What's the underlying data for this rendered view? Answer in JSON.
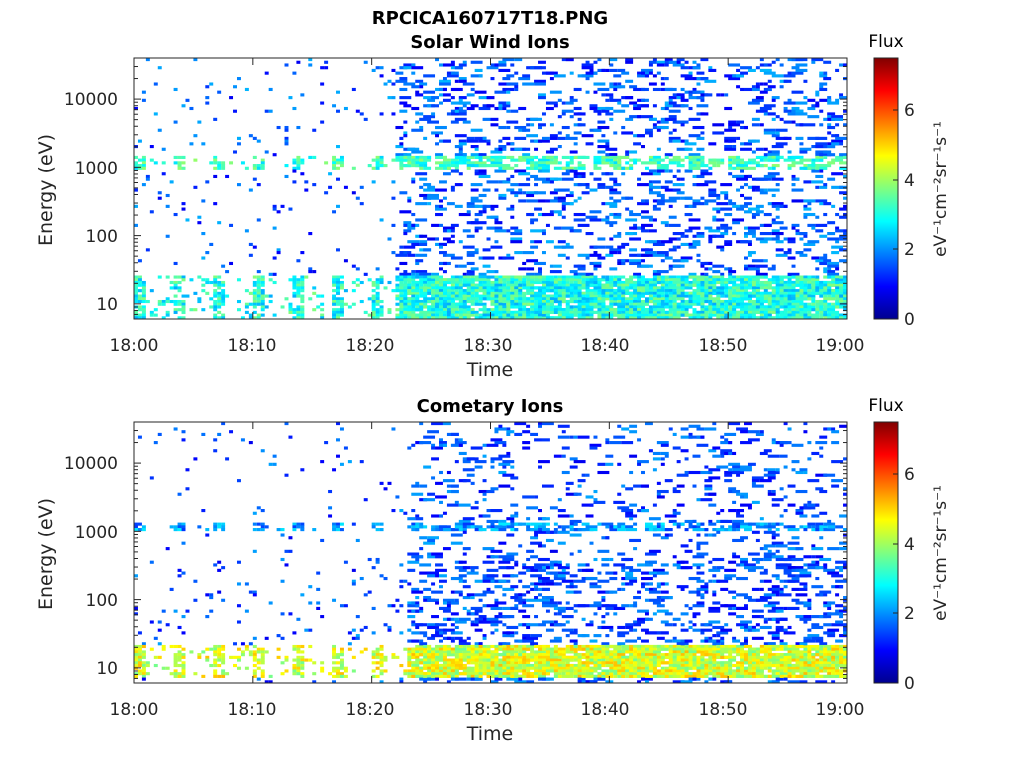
{
  "figure": {
    "title": "RPCICA160717T18.PNG"
  },
  "chart_data": [
    {
      "type": "heatmap",
      "title": "Solar Wind Ions",
      "xlabel": "Time",
      "ylabel": "Energy (eV)",
      "x_tick_labels": [
        "18:00",
        "18:10",
        "18:20",
        "18:30",
        "18:40",
        "18:50",
        "19:00"
      ],
      "x_range": [
        "18:00",
        "19:00"
      ],
      "y_tick_values": [
        10,
        100,
        1000,
        10000
      ],
      "y_tick_labels": [
        "10",
        "100",
        "1000",
        "10000"
      ],
      "y_range": [
        6,
        40000
      ],
      "y_scale": "log",
      "grid": false,
      "colorbar": {
        "label": "Flux",
        "unit_label": "eV⁻¹cm⁻²sr⁻¹s⁻¹",
        "ticks": [
          0,
          2,
          4,
          6
        ],
        "tick_labels": [
          "0",
          "2",
          "4",
          "6"
        ],
        "range": [
          0,
          7.5
        ],
        "colormap": "jet"
      },
      "profile": {
        "low_band_energy_eV": [
          6,
          25
        ],
        "low_band_flux": 3.0,
        "mid_band_energy_eV": [
          900,
          1500
        ],
        "mid_band_flux": 3.2,
        "sparse_flux_range": [
          0.8,
          2.3
        ],
        "dense_after_time": "18:22"
      }
    },
    {
      "type": "heatmap",
      "title": "Cometary Ions",
      "xlabel": "Time",
      "ylabel": "Energy (eV)",
      "x_tick_labels": [
        "18:00",
        "18:10",
        "18:20",
        "18:30",
        "18:40",
        "18:50",
        "19:00"
      ],
      "x_range": [
        "18:00",
        "19:00"
      ],
      "y_tick_values": [
        10,
        100,
        1000,
        10000
      ],
      "y_tick_labels": [
        "10",
        "100",
        "1000",
        "10000"
      ],
      "y_range": [
        6,
        40000
      ],
      "y_scale": "log",
      "grid": false,
      "colorbar": {
        "label": "Flux",
        "unit_label": "eV⁻¹cm⁻²sr⁻¹s⁻¹",
        "ticks": [
          0,
          2,
          4,
          6
        ],
        "tick_labels": [
          "0",
          "2",
          "4",
          "6"
        ],
        "range": [
          0,
          7.5
        ],
        "colormap": "jet"
      },
      "profile": {
        "low_band_energy_eV": [
          7,
          22
        ],
        "low_band_flux": 4.4,
        "mid_band_energy_eV": [
          1000,
          1300
        ],
        "mid_band_flux": 2.0,
        "sparse_flux_range": [
          0.8,
          2.2
        ],
        "dense_after_time": "18:23"
      }
    }
  ]
}
